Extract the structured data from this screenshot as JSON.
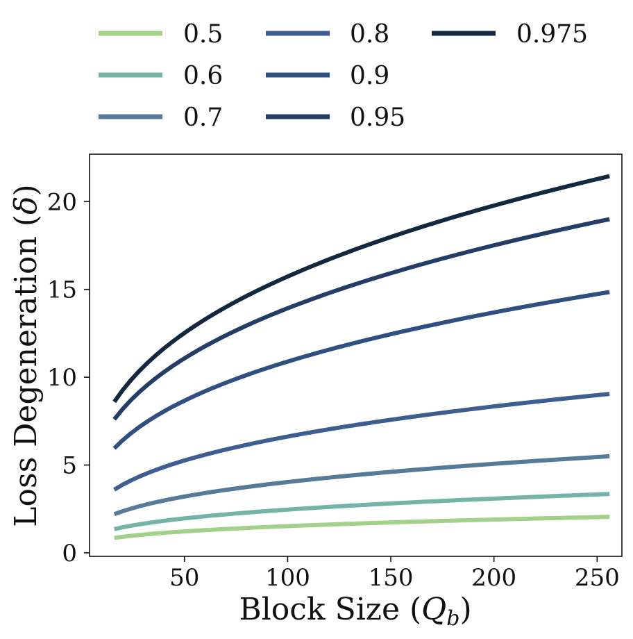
{
  "chart_data": {
    "type": "line",
    "xlabel": "Block Size (",
    "xlabel_var": "Q",
    "xlabel_sub": "b",
    "xlabel_close": ")",
    "ylabel": "Loss Degeneration (",
    "ylabel_var": "δ",
    "ylabel_close": ")",
    "xlim": [
      4,
      262
    ],
    "ylim": [
      -0.2,
      22.7
    ],
    "xticks": [
      50,
      100,
      150,
      200,
      250
    ],
    "yticks": [
      0,
      5,
      10,
      15,
      20
    ],
    "x": [
      16,
      256
    ],
    "legend_position": "top",
    "series": [
      {
        "name": "0.5",
        "color": "#a3d08a",
        "values": [
          0.85,
          2.05
        ]
      },
      {
        "name": "0.6",
        "color": "#74b4a6",
        "values": [
          1.35,
          3.35
        ]
      },
      {
        "name": "0.7",
        "color": "#567a98",
        "values": [
          2.2,
          5.5
        ]
      },
      {
        "name": "0.8",
        "color": "#3e5e92",
        "values": [
          3.6,
          9.05
        ]
      },
      {
        "name": "0.9",
        "color": "#2f4f80",
        "values": [
          5.95,
          14.85
        ]
      },
      {
        "name": "0.95",
        "color": "#233d66",
        "values": [
          7.6,
          19.0
        ]
      },
      {
        "name": "0.975",
        "color": "#13283f",
        "values": [
          8.6,
          21.45
        ]
      }
    ]
  }
}
